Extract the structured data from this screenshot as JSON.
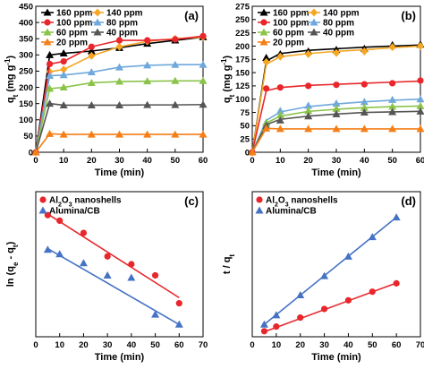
{
  "chart_data": [
    {
      "id": "a",
      "type": "line",
      "panel_label": "(a)",
      "xlabel": "Time (min)",
      "ylabel_main": "q",
      "ylabel_sub": "t",
      "ylabel_unit": "(mg g",
      "ylabel_exp": "-1",
      "ylabel_close": ")",
      "xlim": [
        0,
        60
      ],
      "ylim": [
        0,
        450
      ],
      "xticks": [
        0,
        10,
        20,
        30,
        40,
        50,
        60
      ],
      "yticks": [
        0,
        50,
        100,
        150,
        200,
        250,
        300,
        350,
        400,
        450
      ],
      "legend_position": "top-left",
      "legend_columns": 2,
      "series": [
        {
          "name": "160 ppm",
          "color": "#000000",
          "marker": "triangle",
          "x": [
            0,
            5,
            10,
            20,
            30,
            40,
            50,
            60
          ],
          "y": [
            0,
            300,
            305,
            312,
            322,
            335,
            345,
            355
          ],
          "fit": [
            300,
            305,
            312,
            322,
            335,
            345,
            355
          ]
        },
        {
          "name": "140 ppm",
          "color": "#f5a623",
          "marker": "diamond",
          "x": [
            0,
            5,
            10,
            20,
            30,
            40,
            50,
            60
          ],
          "y": [
            0,
            248,
            255,
            297,
            325,
            342,
            350,
            355
          ],
          "fit": [
            248,
            255,
            297,
            325,
            342,
            350,
            355
          ]
        },
        {
          "name": "100 ppm",
          "color": "#e8262b",
          "marker": "circle",
          "x": [
            0,
            5,
            10,
            20,
            30,
            40,
            50,
            60
          ],
          "y": [
            0,
            272,
            280,
            325,
            345,
            345,
            348,
            358
          ],
          "fit": [
            272,
            280,
            325,
            345,
            345,
            348,
            358
          ]
        },
        {
          "name": "80 ppm",
          "color": "#6fa8dc",
          "marker": "triangle",
          "x": [
            0,
            5,
            10,
            20,
            30,
            40,
            50,
            60
          ],
          "y": [
            0,
            236,
            238,
            247,
            262,
            268,
            270,
            270
          ],
          "fit": [
            236,
            238,
            247,
            262,
            268,
            270,
            270
          ]
        },
        {
          "name": "60 ppm",
          "color": "#8bc34a",
          "marker": "triangle",
          "x": [
            0,
            5,
            10,
            20,
            30,
            40,
            50,
            60
          ],
          "y": [
            0,
            196,
            200,
            214,
            218,
            219,
            220,
            220
          ],
          "fit": [
            196,
            200,
            214,
            218,
            219,
            220,
            220
          ]
        },
        {
          "name": "40 ppm",
          "color": "#555555",
          "marker": "triangle",
          "x": [
            0,
            5,
            10,
            20,
            30,
            40,
            50,
            60
          ],
          "y": [
            0,
            150,
            145,
            145,
            145,
            146,
            146,
            147
          ],
          "fit": [
            150,
            145,
            145,
            145,
            146,
            146,
            147
          ]
        },
        {
          "name": "20 ppm",
          "color": "#f57f17",
          "marker": "triangle",
          "x": [
            0,
            5,
            10,
            20,
            30,
            40,
            50,
            60
          ],
          "y": [
            0,
            57,
            55,
            55,
            55,
            55,
            55,
            55
          ],
          "fit": [
            57,
            55,
            55,
            55,
            55,
            55,
            55
          ]
        }
      ]
    },
    {
      "id": "b",
      "type": "line",
      "panel_label": "(b)",
      "xlabel": "Time (min)",
      "ylabel_main": "q",
      "ylabel_sub": "t",
      "ylabel_unit": "(mg g",
      "ylabel_exp": "-1",
      "ylabel_close": ")",
      "xlim": [
        0,
        60
      ],
      "ylim": [
        0,
        275
      ],
      "xticks": [
        0,
        10,
        20,
        30,
        40,
        50,
        60
      ],
      "yticks": [
        0,
        25,
        50,
        75,
        100,
        125,
        150,
        175,
        200,
        225,
        250,
        275
      ],
      "legend_position": "top-left",
      "legend_columns": 2,
      "series": [
        {
          "name": "160 ppm",
          "color": "#000000",
          "marker": "triangle",
          "x": [
            0,
            5,
            10,
            20,
            30,
            40,
            50,
            60
          ],
          "y": [
            0,
            178,
            185,
            190,
            193,
            195,
            202,
            203
          ],
          "fit": [
            172,
            186,
            192,
            195,
            198,
            200,
            202
          ]
        },
        {
          "name": "140 ppm",
          "color": "#f5a623",
          "marker": "diamond",
          "x": [
            0,
            5,
            10,
            20,
            30,
            40,
            50,
            60
          ],
          "y": [
            0,
            170,
            180,
            185,
            187,
            190,
            198,
            200
          ],
          "fit": [
            166,
            180,
            186,
            190,
            193,
            197,
            200
          ]
        },
        {
          "name": "100 ppm",
          "color": "#e8262b",
          "marker": "circle",
          "x": [
            0,
            5,
            10,
            20,
            30,
            40,
            50,
            60
          ],
          "y": [
            0,
            120,
            122,
            125,
            127,
            128,
            130,
            135
          ],
          "fit": [
            116,
            122,
            126,
            128,
            130,
            132,
            134
          ]
        },
        {
          "name": "80 ppm",
          "color": "#6fa8dc",
          "marker": "triangle",
          "x": [
            0,
            5,
            10,
            20,
            30,
            40,
            50,
            60
          ],
          "y": [
            0,
            56,
            78,
            88,
            92,
            95,
            99,
            100
          ],
          "fit": [
            60,
            76,
            86,
            91,
            95,
            98,
            100
          ]
        },
        {
          "name": "60 ppm",
          "color": "#8bc34a",
          "marker": "triangle",
          "x": [
            0,
            5,
            10,
            20,
            30,
            40,
            50,
            60
          ],
          "y": [
            0,
            55,
            70,
            78,
            82,
            84,
            86,
            87
          ],
          "fit": [
            55,
            68,
            77,
            81,
            84,
            86,
            87
          ]
        },
        {
          "name": "40 ppm",
          "color": "#555555",
          "marker": "triangle",
          "x": [
            0,
            5,
            10,
            20,
            30,
            40,
            50,
            60
          ],
          "y": [
            0,
            50,
            60,
            68,
            72,
            75,
            76,
            77
          ],
          "fit": [
            52,
            62,
            68,
            72,
            75,
            76,
            77
          ]
        },
        {
          "name": "20 ppm",
          "color": "#f57f17",
          "marker": "triangle",
          "x": [
            0,
            5,
            10,
            20,
            30,
            40,
            50,
            60
          ],
          "y": [
            0,
            45,
            44,
            44,
            44,
            44,
            44,
            44
          ],
          "fit": [
            45,
            44,
            44,
            44,
            44,
            44,
            44
          ]
        }
      ]
    },
    {
      "id": "c",
      "type": "scatter",
      "panel_label": "(c)",
      "xlabel": "Time (min)",
      "ylabel_main": "ln (q",
      "ylabel_sub1": "e",
      "ylabel_mid": " - q",
      "ylabel_sub2": "t",
      "ylabel_close": ")",
      "xlim": [
        0,
        70
      ],
      "ylim": [
        -1,
        5.5
      ],
      "xticks": [
        0,
        10,
        20,
        30,
        40,
        50,
        60,
        70
      ],
      "yticks": [],
      "legend_position": "top-left",
      "legend_columns": 1,
      "series": [
        {
          "name": "Al",
          "name_sub": "2",
          "name_mid": "O",
          "name_sub2": "3",
          "name_tail": " nanoshells",
          "color": "#e8262b",
          "marker": "circle",
          "x": [
            5,
            10,
            20,
            30,
            40,
            50,
            60
          ],
          "y": [
            4.45,
            4.2,
            3.65,
            2.6,
            2.25,
            1.75,
            0.5
          ],
          "fit_start": [
            5,
            4.5
          ],
          "fit_end": [
            60,
            0.75
          ]
        },
        {
          "name": "Alumina/CB",
          "color": "#4472c4",
          "marker": "triangle",
          "x": [
            5,
            10,
            20,
            30,
            40,
            50,
            60
          ],
          "y": [
            2.9,
            2.7,
            2.3,
            1.75,
            1.65,
            0.0,
            -0.45
          ],
          "fit_start": [
            5,
            2.95
          ],
          "fit_end": [
            60,
            -0.45
          ]
        }
      ]
    },
    {
      "id": "d",
      "type": "scatter",
      "panel_label": "(d)",
      "xlabel": "Time (min)",
      "ylabel_main": "t / q",
      "ylabel_sub": "t",
      "xlim": [
        0,
        70
      ],
      "ylim": [
        0,
        0.47
      ],
      "xticks": [
        0,
        10,
        20,
        30,
        40,
        50,
        60,
        70
      ],
      "yticks": [],
      "legend_position": "top-left",
      "legend_columns": 1,
      "series": [
        {
          "name": "Al",
          "name_sub": "2",
          "name_mid": "O",
          "name_sub2": "3",
          "name_tail": " nanoshells",
          "color": "#e8262b",
          "marker": "circle",
          "x": [
            5,
            10,
            20,
            30,
            40,
            50,
            60
          ],
          "y": [
            0.018,
            0.033,
            0.062,
            0.09,
            0.118,
            0.146,
            0.173
          ],
          "fit_start": [
            5,
            0.016
          ],
          "fit_end": [
            60,
            0.174
          ]
        },
        {
          "name": "Alumina/CB",
          "color": "#4472c4",
          "marker": "triangle",
          "x": [
            5,
            10,
            20,
            30,
            40,
            50,
            60
          ],
          "y": [
            0.04,
            0.07,
            0.135,
            0.197,
            0.26,
            0.323,
            0.387
          ],
          "fit_start": [
            5,
            0.04
          ],
          "fit_end": [
            60,
            0.387
          ]
        }
      ]
    }
  ]
}
